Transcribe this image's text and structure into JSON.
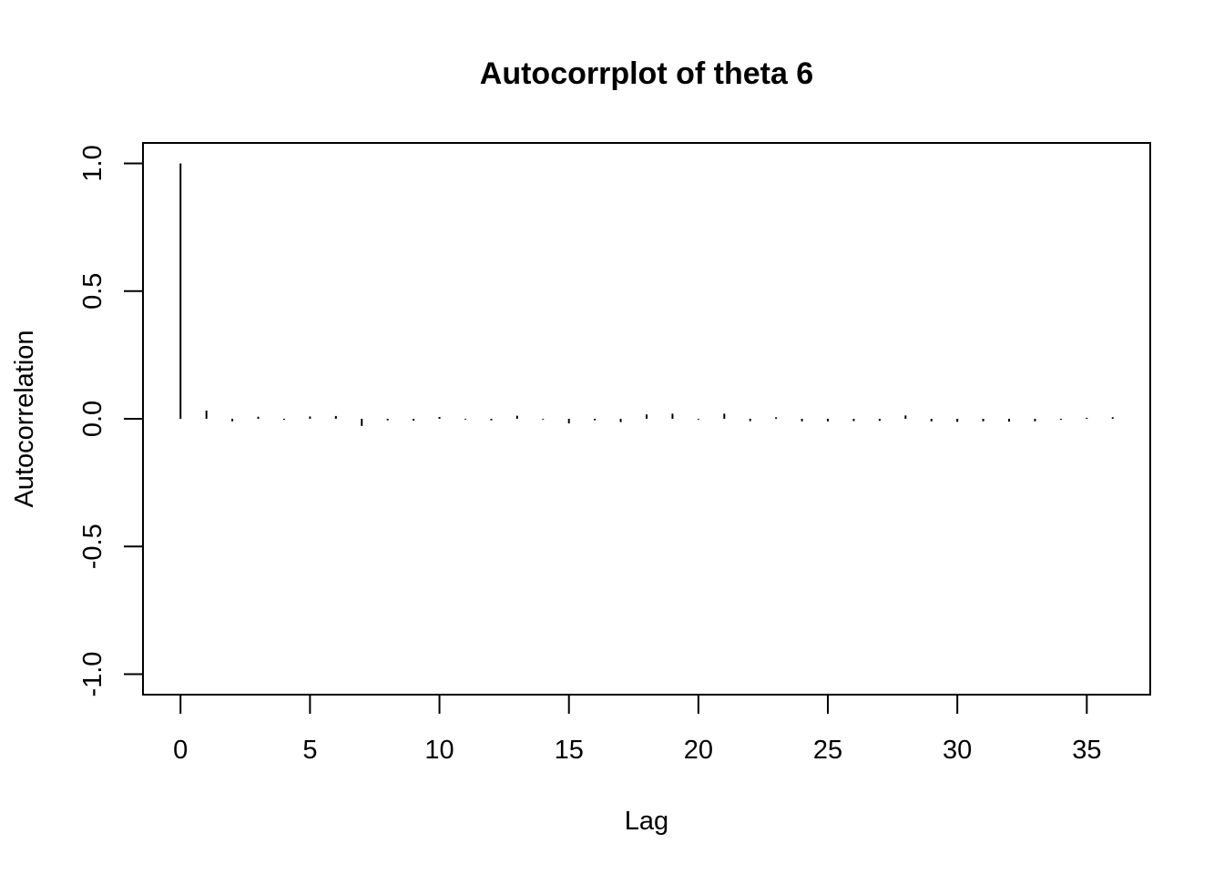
{
  "chart_data": {
    "type": "bar",
    "title": "Autocorrplot of theta  6",
    "xlabel": "Lag",
    "ylabel": "Autocorrelation",
    "xlim": [
      -1.45,
      37.45
    ],
    "ylim": [
      -1.08,
      1.08
    ],
    "grid": false,
    "legend": "none",
    "x_ticks": [
      0,
      5,
      10,
      15,
      20,
      25,
      30,
      35
    ],
    "y_ticks": [
      -1.0,
      -0.5,
      0.0,
      0.5,
      1.0
    ],
    "x_tick_labels": [
      "0",
      "5",
      "10",
      "15",
      "20",
      "25",
      "30",
      "35"
    ],
    "y_tick_labels": [
      "-1.0",
      "-0.5",
      "0.0",
      "0.5",
      "1.0"
    ],
    "series": [
      {
        "lags": [
          0,
          1,
          2,
          3,
          4,
          5,
          6,
          7,
          8,
          9,
          10,
          11,
          12,
          13,
          14,
          15,
          16,
          17,
          18,
          19,
          20,
          21,
          22,
          23,
          24,
          25,
          26,
          27,
          28,
          29,
          30,
          31,
          32,
          33,
          34,
          35,
          36
        ],
        "values": [
          1.0,
          0.032,
          -0.01,
          0.008,
          -0.004,
          0.009,
          0.011,
          -0.028,
          -0.006,
          -0.007,
          0.007,
          -0.003,
          -0.006,
          0.012,
          -0.003,
          -0.018,
          -0.006,
          -0.013,
          0.017,
          0.02,
          -0.003,
          0.02,
          -0.009,
          0.006,
          -0.01,
          -0.01,
          -0.009,
          -0.008,
          0.013,
          -0.01,
          -0.012,
          -0.01,
          -0.011,
          -0.01,
          -0.004,
          0.004,
          0.006
        ]
      }
    ]
  }
}
